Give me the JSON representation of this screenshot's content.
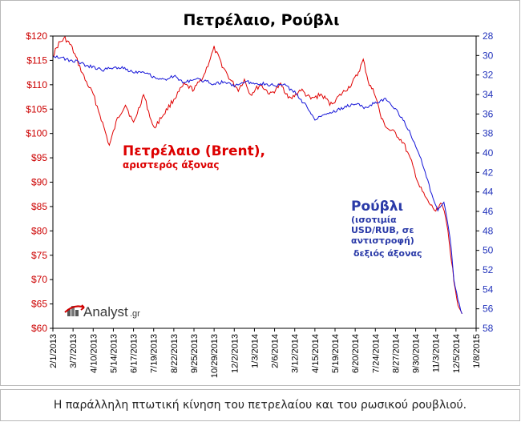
{
  "chart_data": {
    "type": "line",
    "title": "Πετρέλαιο, Ρούβλι",
    "x_tick_labels": [
      "2/1/2013",
      "3/7/2013",
      "4/10/2013",
      "5/14/2013",
      "6/17/2013",
      "7/19/2013",
      "8/22/2013",
      "9/25/2013",
      "10/29/2013",
      "12/2/2013",
      "1/3/2014",
      "2/6/2014",
      "3/12/2014",
      "4/15/2014",
      "5/19/2014",
      "6/20/2014",
      "7/24/2014",
      "8/27/2014",
      "9/30/2014",
      "11/3/2014",
      "12/5/2014",
      "1/8/2015"
    ],
    "y_left": {
      "ticks": [
        "$60",
        "$65",
        "$70",
        "$75",
        "$80",
        "$85",
        "$90",
        "$95",
        "$100",
        "$105",
        "$110",
        "$115",
        "$120"
      ],
      "ylim": [
        60,
        120
      ]
    },
    "y_right": {
      "ticks": [
        "28",
        "30",
        "32",
        "34",
        "36",
        "38",
        "40",
        "42",
        "44",
        "46",
        "48",
        "50",
        "52",
        "54",
        "56",
        "58"
      ],
      "ylim": [
        28,
        58
      ],
      "inverted": true
    },
    "grid": false,
    "series": [
      {
        "name": "Πετρέλαιο (Brent)",
        "axis": "left",
        "color": "#e00000",
        "x": [
          0,
          0.3,
          0.6,
          0.9,
          1.2,
          1.6,
          2,
          2.4,
          2.8,
          3.2,
          3.6,
          4,
          4.5,
          5,
          5.5,
          6,
          6.5,
          7,
          7.5,
          8,
          8.4,
          8.8,
          9.2,
          9.5,
          9.8,
          10.3,
          10.8,
          11.3,
          11.8,
          12.3,
          12.8,
          13.3,
          13.8,
          14.3,
          14.8,
          15.1,
          15.4,
          15.7,
          16,
          16.3,
          16.6,
          17,
          17.4,
          17.8,
          18.2,
          18.6,
          19,
          19.3,
          19.6,
          19.9,
          20.1,
          20.3
        ],
        "values": [
          116,
          118.5,
          119.5,
          118,
          115,
          111,
          108,
          103,
          97.5,
          103,
          106,
          102,
          108,
          101,
          104,
          107,
          110,
          109,
          112,
          117.5,
          114,
          111,
          109,
          111,
          108,
          110,
          108,
          110,
          107,
          109,
          107,
          108,
          106,
          108,
          110,
          112,
          115,
          110,
          108,
          103,
          101,
          100,
          98,
          94,
          89,
          86,
          84,
          86,
          80,
          70,
          65,
          63
        ]
      },
      {
        "name": "Ρούβλι",
        "axis": "right",
        "color": "#1515d8",
        "x": [
          0,
          0.4,
          0.8,
          1.2,
          1.6,
          2,
          2.5,
          3,
          3.5,
          4,
          4.5,
          5,
          5.5,
          6,
          6.5,
          7,
          7.5,
          8,
          8.5,
          9,
          9.5,
          10,
          10.5,
          11,
          11.5,
          12,
          12.5,
          13,
          13.5,
          14,
          14.5,
          15,
          15.5,
          16,
          16.5,
          17,
          17.5,
          18,
          18.4,
          18.8,
          19.1,
          19.4,
          19.7,
          19.9,
          20.1,
          20.3
        ],
        "values": [
          30,
          30.2,
          30.5,
          30.6,
          31,
          31.2,
          31.5,
          31.2,
          31.3,
          31.7,
          31.6,
          32.2,
          32.5,
          32.1,
          32.8,
          32.4,
          32.6,
          32.9,
          32.7,
          33.1,
          32.7,
          32.8,
          32.9,
          33.1,
          33.0,
          33.8,
          35.0,
          36.5,
          36.0,
          35.7,
          35.3,
          34.9,
          35.4,
          34.8,
          34.5,
          35.5,
          37.0,
          39.2,
          41.5,
          44.3,
          46.0,
          45.0,
          48.5,
          53.0,
          55.0,
          56.5
        ]
      }
    ],
    "annotations": {
      "oil_title": "Πετρέλαιο (Brent),",
      "oil_sub": "αριστερός άξονας",
      "rub_title": "Ρούβλι",
      "rub_sub1": "(ισοτιμία",
      "rub_sub2": "USD/RUB, σε",
      "rub_sub3": "αντιστροφή)",
      "rub_sub4": "δεξιός άξονας"
    }
  },
  "logo": {
    "text": "Analyst",
    "suffix": ".gr"
  },
  "caption": "Η παράλληλη πτωτική κίνηση του πετρελαίου και του ρωσικού ρουβλιού.",
  "colors": {
    "oil": "#e00000",
    "ruble": "#1515d8",
    "left_axis": "#cc0000",
    "right_axis": "#2233bb"
  }
}
